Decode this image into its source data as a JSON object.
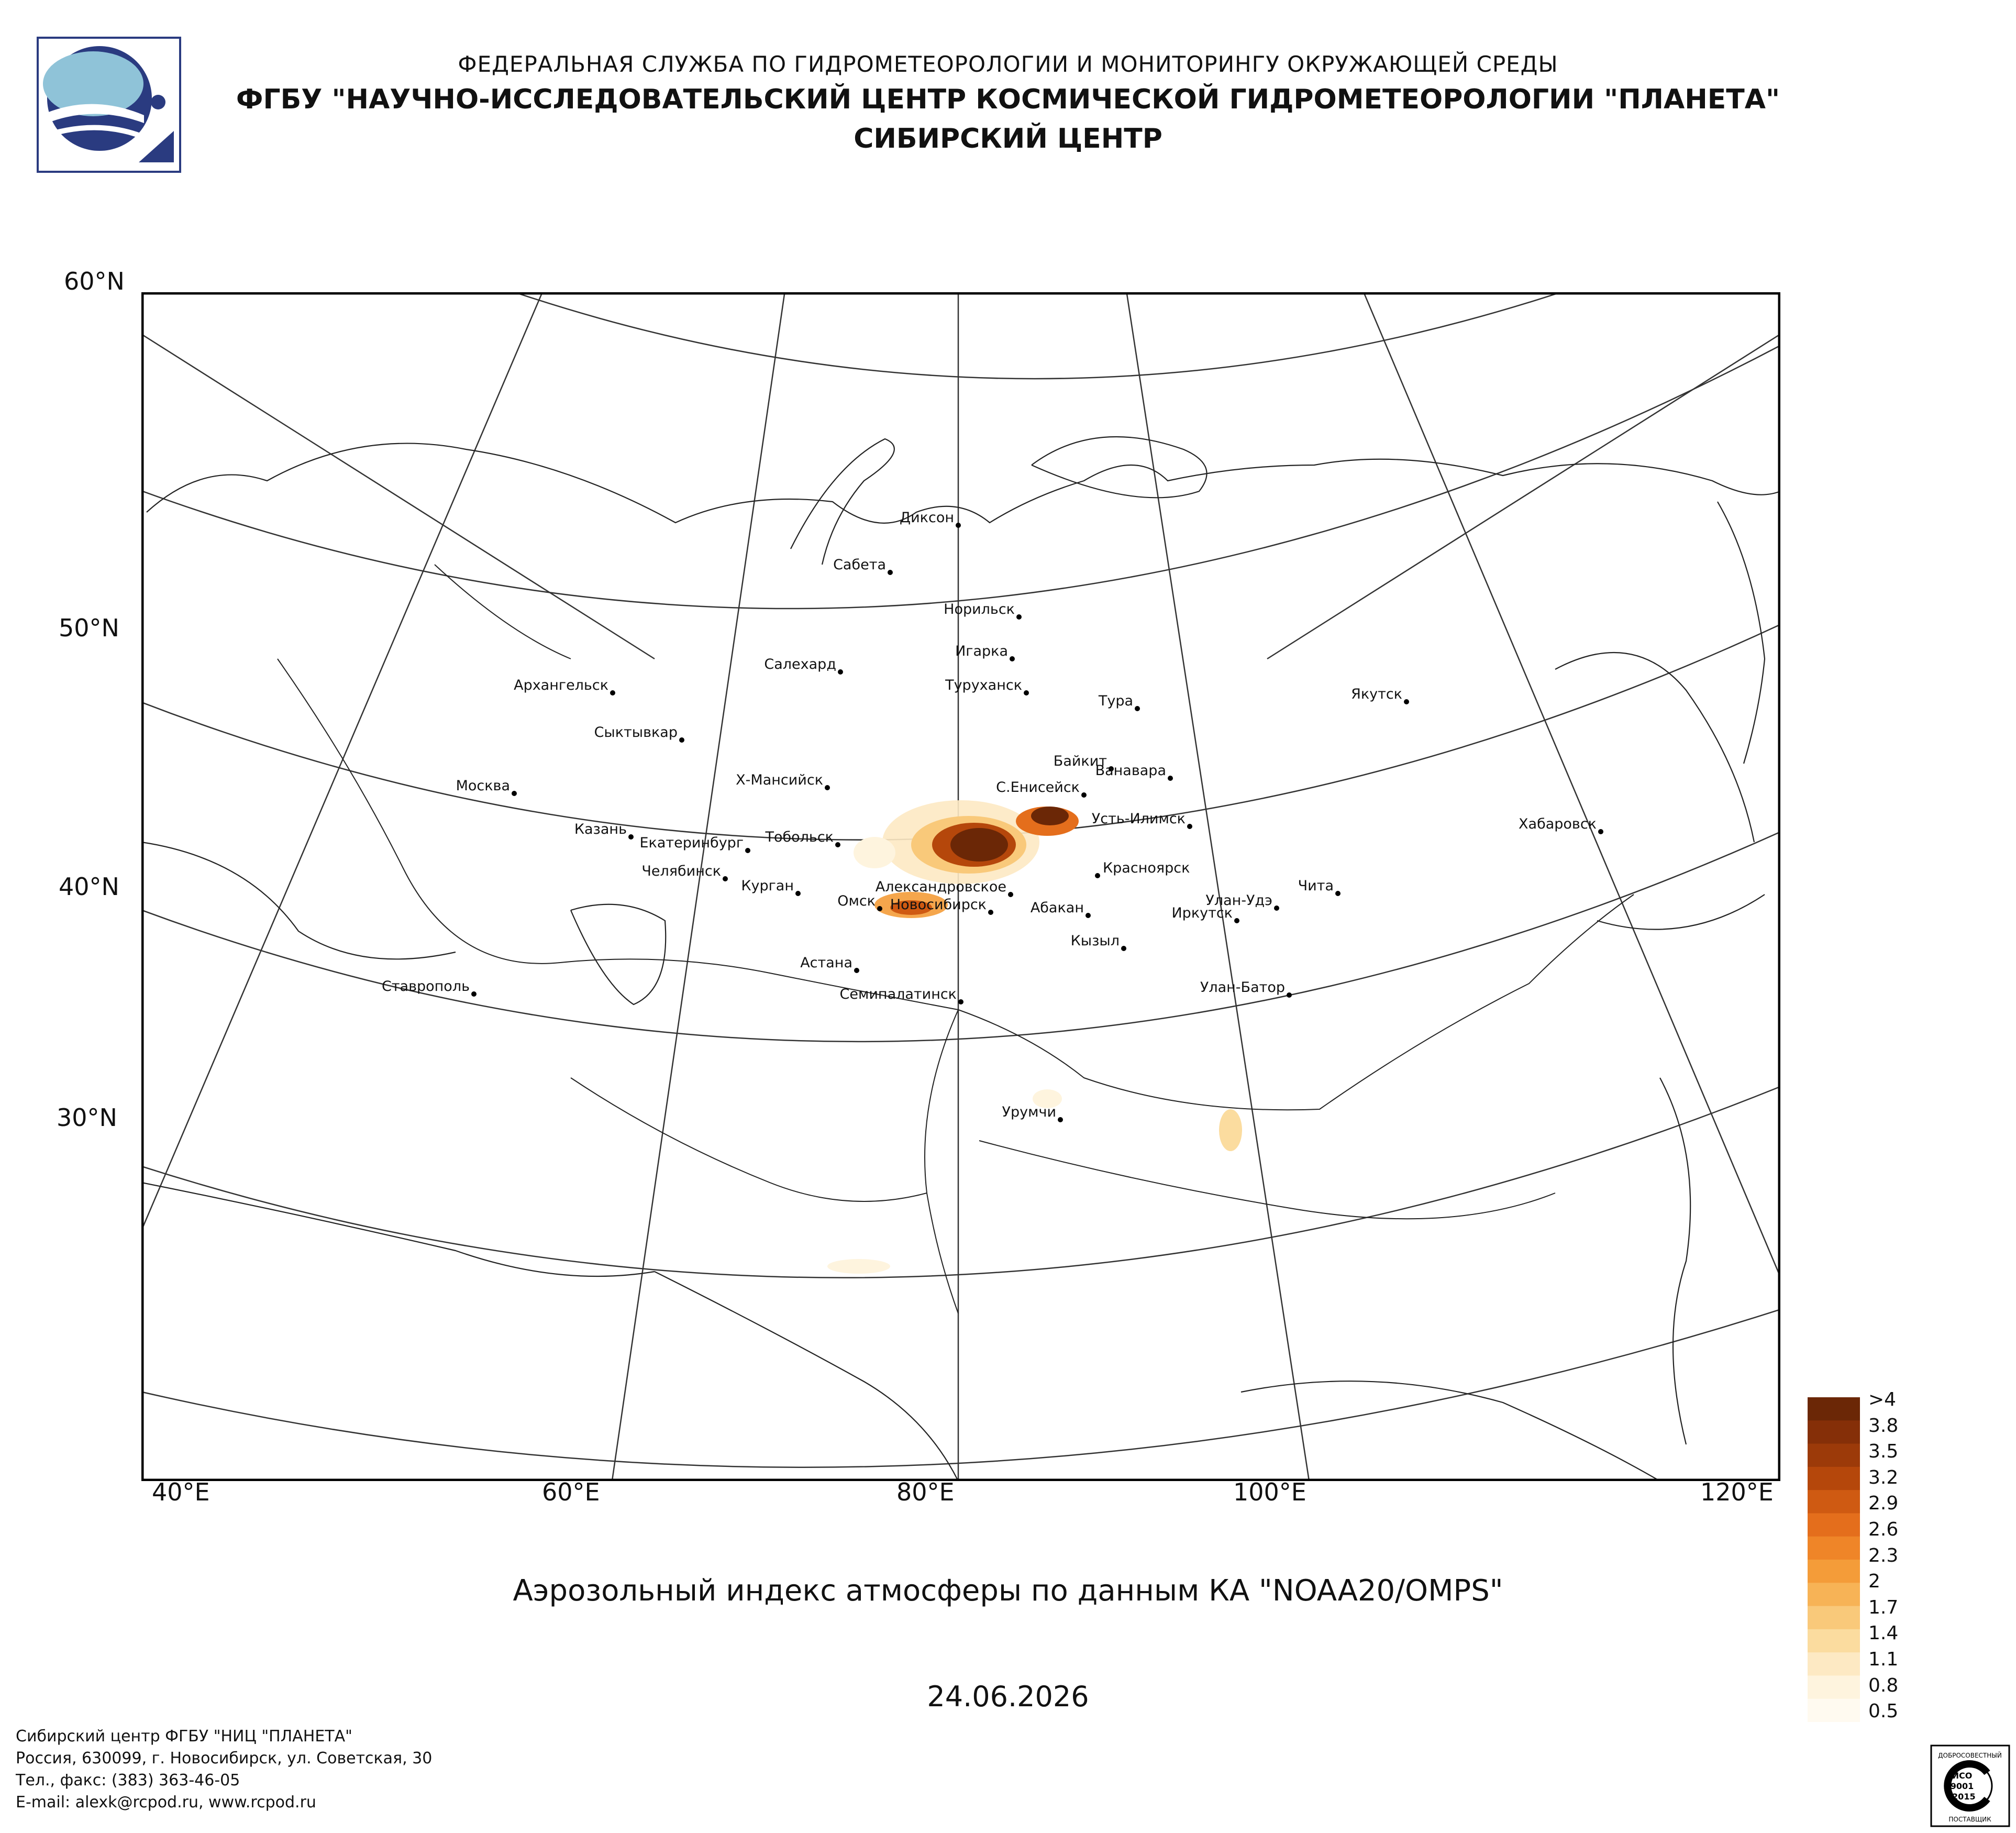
{
  "header": {
    "line1": "ФЕДЕРАЛЬНАЯ СЛУЖБА ПО ГИДРОМЕТЕОРОЛОГИИ И МОНИТОРИНГУ ОКРУЖАЮЩЕЙ СРЕДЫ",
    "line2": "ФГБУ \"НАУЧНО-ИССЛЕДОВАТЕЛЬСКИЙ ЦЕНТР КОСМИЧЕСКОЙ ГИДРОМЕТЕОРОЛОГИИ \"ПЛАНЕТА\"",
    "line3": "СИБИРСКИЙ ЦЕНТР"
  },
  "map": {
    "lat_labels": [
      "60°N",
      "50°N",
      "40°N",
      "30°N"
    ],
    "lon_labels": [
      "40°E",
      "60°E",
      "80°E",
      "100°E",
      "120°E"
    ],
    "cities": [
      {
        "name": "Диксон"
      },
      {
        "name": "Сабета"
      },
      {
        "name": "Норильск"
      },
      {
        "name": "Игарка"
      },
      {
        "name": "Салехард"
      },
      {
        "name": "Туруханск"
      },
      {
        "name": "Архангельск"
      },
      {
        "name": "Тура"
      },
      {
        "name": "Якутск"
      },
      {
        "name": "Сыктывкар"
      },
      {
        "name": "Байкит"
      },
      {
        "name": "Ванавара"
      },
      {
        "name": "Х-Мансийск"
      },
      {
        "name": "С.Енисейск"
      },
      {
        "name": "Москва"
      },
      {
        "name": "Усть-Илимск"
      },
      {
        "name": "Хабаровск"
      },
      {
        "name": "Казань"
      },
      {
        "name": "Тобольск"
      },
      {
        "name": "Екатеринбург"
      },
      {
        "name": "Челябинск"
      },
      {
        "name": "Красноярск"
      },
      {
        "name": "Александровское"
      },
      {
        "name": "Курган"
      },
      {
        "name": "Чита"
      },
      {
        "name": "Омск"
      },
      {
        "name": "Новосибирск"
      },
      {
        "name": "Улан-Удэ"
      },
      {
        "name": "Абакан"
      },
      {
        "name": "Иркутск"
      },
      {
        "name": "Кызыл"
      },
      {
        "name": "Астана"
      },
      {
        "name": "Ставрополь"
      },
      {
        "name": "Улан-Батор"
      },
      {
        "name": "Семипалатинск"
      },
      {
        "name": "Урумчи"
      }
    ],
    "colors": {
      "frame": "#000000",
      "grid": "#333333",
      "coast": "#222222"
    }
  },
  "title": "Аэрозольный индекс атмосферы по данным КА \"NOAA20/OMPS\"",
  "date": "24.06.2026",
  "legend": {
    "labels": [
      ">4",
      "3.8",
      "3.5",
      "3.2",
      "2.9",
      "2.6",
      "2.3",
      "2",
      "1.7",
      "1.4",
      "1.1",
      "0.8",
      "0.5"
    ],
    "colors": [
      "#6b2706",
      "#852f08",
      "#9c3a09",
      "#b5470b",
      "#cf5a12",
      "#e46e1c",
      "#ef8528",
      "#f49c39",
      "#f7b356",
      "#f9c97a",
      "#fbdc9f",
      "#fde9c3",
      "#fef4de",
      "#fffaf0"
    ]
  },
  "footer": {
    "line1": "Сибирский центр ФГБУ \"НИЦ \"ПЛАНЕТА\"",
    "line2": "Россия, 630099, г. Новосибирск, ул. Советская, 30",
    "line3": "Тел., факс: (383) 363-46-05",
    "line4": "E-mail: alexk@rcpod.ru, www.rcpod.ru"
  },
  "cert": {
    "top": "ДОБРОСОВЕСТНЫЙ",
    "line1": "ИСО",
    "line2": "9001",
    "line3": "-2015",
    "bottom": "ПОСТАВЩИК"
  }
}
